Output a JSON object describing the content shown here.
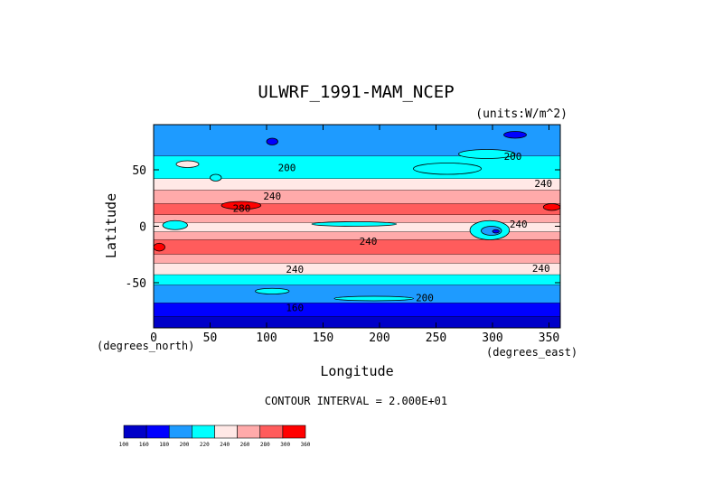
{
  "chart_data": {
    "type": "heatmap",
    "title": "ULWRF_1991-MAM_NCEP",
    "units_label": "(units:W/m^2)",
    "xlabel": "Longitude",
    "ylabel": "Latitude",
    "x_units_label": "(degrees_east)",
    "y_units_label": "(degrees_north)",
    "xlim": [
      0,
      360
    ],
    "ylim": [
      -90,
      90
    ],
    "xticks": [
      0,
      50,
      100,
      150,
      200,
      250,
      300,
      350
    ],
    "yticks": [
      50,
      0,
      -50
    ],
    "contour_interval_text": "CONTOUR INTERVAL = 2.000E+01",
    "contour_labels": [
      {
        "text": "200",
        "lon": 118,
        "lat": 52
      },
      {
        "text": "200",
        "lon": 318,
        "lat": 62
      },
      {
        "text": "240",
        "lon": 105,
        "lat": 27
      },
      {
        "text": "240",
        "lon": 345,
        "lat": 38
      },
      {
        "text": "280",
        "lon": 78,
        "lat": 16
      },
      {
        "text": "240",
        "lon": 323,
        "lat": 2
      },
      {
        "text": "240",
        "lon": 190,
        "lat": -13
      },
      {
        "text": "240",
        "lon": 125,
        "lat": -38
      },
      {
        "text": "240",
        "lon": 343,
        "lat": -37
      },
      {
        "text": "200",
        "lon": 240,
        "lat": -63
      },
      {
        "text": "160",
        "lon": 125,
        "lat": -72
      }
    ],
    "colorbar": {
      "levels": [
        100,
        160,
        180,
        200,
        220,
        240,
        260,
        280,
        300,
        360
      ],
      "colors": [
        "#0000c8",
        "#0000ff",
        "#1e9bff",
        "#00ffff",
        "#ffe8e6",
        "#ffaaaa",
        "#ff5c5c",
        "#ff0000"
      ]
    },
    "bands": [
      {
        "lat": [
          62,
          90
        ],
        "color": "#1e9bff"
      },
      {
        "lat": [
          42,
          62
        ],
        "color": "#00ffff"
      },
      {
        "lat": [
          32,
          42
        ],
        "color": "#ffe8e6"
      },
      {
        "lat": [
          20,
          32
        ],
        "color": "#ffaaaa"
      },
      {
        "lat": [
          10,
          20
        ],
        "color": "#ff5c5c"
      },
      {
        "lat": [
          3,
          10
        ],
        "color": "#ffaaaa"
      },
      {
        "lat": [
          -5,
          3
        ],
        "color": "#ffe8e6"
      },
      {
        "lat": [
          -12,
          -5
        ],
        "color": "#ffaaaa"
      },
      {
        "lat": [
          -25,
          -12
        ],
        "color": "#ff5c5c"
      },
      {
        "lat": [
          -33,
          -25
        ],
        "color": "#ffaaaa"
      },
      {
        "lat": [
          -43,
          -33
        ],
        "color": "#ffe8e6"
      },
      {
        "lat": [
          -52,
          -43
        ],
        "color": "#00ffff"
      },
      {
        "lat": [
          -68,
          -52
        ],
        "color": "#1e9bff"
      },
      {
        "lat": [
          -80,
          -68
        ],
        "color": "#0000ff"
      },
      {
        "lat": [
          -90,
          -80
        ],
        "color": "#0000c8"
      }
    ],
    "features": [
      {
        "lon": [
          60,
          95
        ],
        "lat": [
          15,
          22
        ],
        "color": "#ff0000"
      },
      {
        "lon": [
          345,
          360
        ],
        "lat": [
          14,
          20
        ],
        "color": "#ff0000"
      },
      {
        "lon": [
          0,
          10
        ],
        "lat": [
          -22,
          -15
        ],
        "color": "#ff0000"
      },
      {
        "lon": [
          8,
          30
        ],
        "lat": [
          -3,
          5
        ],
        "color": "#00ffff"
      },
      {
        "lon": [
          140,
          215
        ],
        "lat": [
          0,
          4
        ],
        "color": "#00ffff"
      },
      {
        "lon": [
          280,
          315
        ],
        "lat": [
          -12,
          5
        ],
        "color": "#00ffff"
      },
      {
        "lon": [
          290,
          308
        ],
        "lat": [
          -8,
          0
        ],
        "color": "#1e9bff"
      },
      {
        "lon": [
          300,
          306
        ],
        "lat": [
          -6,
          -3
        ],
        "color": "#0000ff"
      },
      {
        "lon": [
          310,
          330
        ],
        "lat": [
          78,
          84
        ],
        "color": "#0000ff"
      },
      {
        "lon": [
          100,
          110
        ],
        "lat": [
          72,
          78
        ],
        "color": "#0000ff"
      },
      {
        "lon": [
          20,
          40
        ],
        "lat": [
          52,
          58
        ],
        "color": "#ffe8e6"
      },
      {
        "lon": [
          50,
          60
        ],
        "lat": [
          40,
          46
        ],
        "color": "#00ffff"
      },
      {
        "lon": [
          230,
          290
        ],
        "lat": [
          46,
          56
        ],
        "color": "#00ffff"
      },
      {
        "lon": [
          270,
          320
        ],
        "lat": [
          60,
          68
        ],
        "color": "#00ffff"
      },
      {
        "lon": [
          90,
          120
        ],
        "lat": [
          -60,
          -55
        ],
        "color": "#00ffff"
      },
      {
        "lon": [
          160,
          230
        ],
        "lat": [
          -66,
          -62
        ],
        "color": "#00ffff"
      }
    ]
  }
}
